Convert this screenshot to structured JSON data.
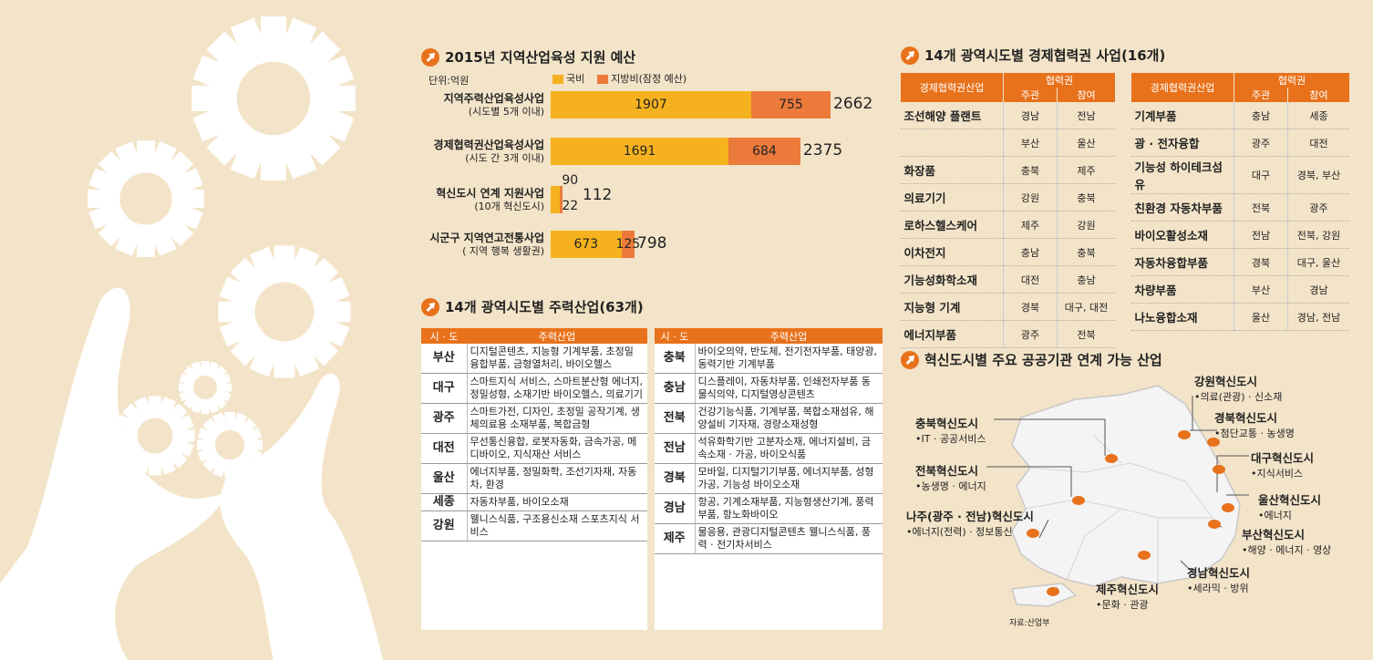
{
  "budget": {
    "title": "2015년 지역산업육성 지원 예산",
    "unit": "단위:억원",
    "legend": [
      {
        "name": "국비",
        "color": "#f5b21e"
      },
      {
        "name": "지방비(잠정 예산)",
        "color": "#ec7a3b"
      }
    ]
  },
  "chart_data": {
    "type": "bar",
    "orientation": "horizontal",
    "stacked": true,
    "title": "2015년 지역산업육성 지원 예산",
    "unit": "단위:억원",
    "categories": [
      {
        "name": "지역주력산업육성사업",
        "sub": "(시도별 5개 이내)"
      },
      {
        "name": "경제협력권산업육성사업",
        "sub": "(시도 간 3개 이내)"
      },
      {
        "name": "혁신도시 연계 지원사업",
        "sub": "(10개 혁신도시)"
      },
      {
        "name": "시군구 지역연고전통사업",
        "sub": "( 지역 행복 생활권)"
      }
    ],
    "series": [
      {
        "name": "국비",
        "values": [
          1907,
          1691,
          90,
          673
        ]
      },
      {
        "name": "지방비(잠정 예산)",
        "values": [
          755,
          684,
          22,
          125
        ]
      }
    ],
    "totals": [
      2662,
      2375,
      112,
      798
    ],
    "value_labels": [
      [
        "1907",
        "755",
        "2662"
      ],
      [
        "1691",
        "684",
        "2375"
      ],
      [
        "90",
        "22",
        "112"
      ],
      [
        "673",
        "125",
        "798"
      ]
    ]
  },
  "main_industry": {
    "title": "14개 광역시도별 주력산업(63개)",
    "headers": [
      "시 · 도",
      "주력산업"
    ],
    "left": [
      {
        "region": "부산",
        "text": "디지털콘텐츠, 지능형 기계부품, 초정밀 융합부품, 금형열처리, 바이오헬스"
      },
      {
        "region": "대구",
        "text": "스마트지식 서비스, 스마트분산형 에너지, 정밀성형, 소재기반 바이오헬스, 의료기기"
      },
      {
        "region": "광주",
        "text": "스마트가전, 디자인, 초정밀 공작기계, 생체의료용 소재부품, 복합금형"
      },
      {
        "region": "대전",
        "text": "무선통신융합, 로봇자동화, 금속가공, 메디바이오, 지식재산 서비스"
      },
      {
        "region": "울산",
        "text": "에너지부품, 정밀화학, 조선기자재, 자동차, 환경"
      },
      {
        "region": "세종",
        "text": "자동차부품, 바이오소재"
      },
      {
        "region": "강원",
        "text": "웰니스식품, 구조용신소재 스포츠지식 서비스"
      }
    ],
    "right": [
      {
        "region": "충북",
        "text": "바이오의약, 반도체, 전기전자부품, 태양광, 동력기반 기계부품"
      },
      {
        "region": "충남",
        "text": "디스플레이, 자동차부품, 인쇄전자부품 동물식의약, 디지털영상콘텐츠"
      },
      {
        "region": "전북",
        "text": "건강기능식품, 기계부품, 복합소재섬유, 해양설비 기자재, 경량소재성형"
      },
      {
        "region": "전남",
        "text": "석유화학기반 고분자소재, 에너지설비, 금속소재 · 가공, 바이오식품"
      },
      {
        "region": "경북",
        "text": "모바일, 디지털기기부품, 에너지부품, 성형가공, 기능성 바이오소재"
      },
      {
        "region": "경남",
        "text": "항공, 기계소재부품, 지능형생산기계, 풍력부품, 항노화바이오"
      },
      {
        "region": "제주",
        "text": "물응용, 관광디지털콘텐츠 웰니스식품, 풍력 · 전기차서비스"
      }
    ]
  },
  "econ": {
    "title": "14개 광역시도별 경제협력권 사업(16개)",
    "headers": {
      "name": "경제협력권산업",
      "group": "협력권",
      "lead": "주관",
      "part": "참여"
    },
    "left": [
      {
        "name": "조선해양 플랜트",
        "lead": "경남",
        "part": "전남"
      },
      {
        "name": "",
        "lead": "부산",
        "part": "울산"
      },
      {
        "name": "화장품",
        "lead": "충북",
        "part": "제주"
      },
      {
        "name": "의료기기",
        "lead": "강원",
        "part": "충북"
      },
      {
        "name": "로하스헬스케어",
        "lead": "제주",
        "part": "강원"
      },
      {
        "name": "이차전지",
        "lead": "충남",
        "part": "충북"
      },
      {
        "name": "기능성화학소재",
        "lead": "대전",
        "part": "충남"
      },
      {
        "name": "지능형 기계",
        "lead": "경북",
        "part": "대구, 대전"
      },
      {
        "name": "에너지부품",
        "lead": "광주",
        "part": "전북"
      }
    ],
    "right": [
      {
        "name": "기계부품",
        "lead": "충남",
        "part": "세종"
      },
      {
        "name": "광 · 전자융합",
        "lead": "광주",
        "part": "대전"
      },
      {
        "name": "기능성 하이테크섬유",
        "lead": "대구",
        "part": "경북, 부산"
      },
      {
        "name": "친환경 자동차부품",
        "lead": "전북",
        "part": "광주"
      },
      {
        "name": "바이오활성소재",
        "lead": "전남",
        "part": "전북, 강원"
      },
      {
        "name": "자동차융합부품",
        "lead": "경북",
        "part": "대구, 울산"
      },
      {
        "name": "차량부품",
        "lead": "부산",
        "part": "경남"
      },
      {
        "name": "나노융합소재",
        "lead": "울산",
        "part": "경남, 전남"
      }
    ]
  },
  "innovation": {
    "title": "혁신도시별 주요 공공기관 연계 가능 산업",
    "source": "자료:산업부",
    "cities": [
      {
        "name": "강원혁신도시",
        "sub": "•의료(관광) · 신소재"
      },
      {
        "name": "충북혁신도시",
        "sub": "•IT · 공공서비스"
      },
      {
        "name": "경북혁신도시",
        "sub": "•첨단교통 · 농생명"
      },
      {
        "name": "대구혁신도시",
        "sub": "•지식서비스"
      },
      {
        "name": "전북혁신도시",
        "sub": "•농생명 · 에너지"
      },
      {
        "name": "울산혁신도시",
        "sub": "•에너지"
      },
      {
        "name": "나주(광주 · 전남)혁신도시",
        "sub": "•에너지(전력) · 정보통신"
      },
      {
        "name": "부산혁신도시",
        "sub": "•해양 · 에너지 · 영상"
      },
      {
        "name": "경남혁신도시",
        "sub": "•세라믹 · 방위"
      },
      {
        "name": "제주혁신도시",
        "sub": "•문화 · 관광"
      }
    ]
  }
}
